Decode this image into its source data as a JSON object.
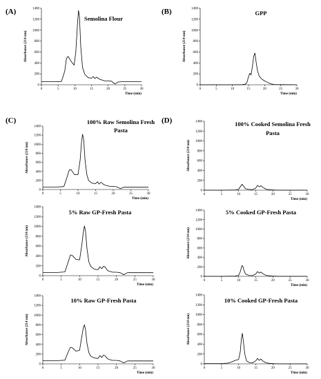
{
  "panel_labels": [
    "(A)",
    "(B)",
    "(C)",
    "(D)"
  ],
  "chart_data": [
    {
      "type": "line",
      "title": "Semolina Flour",
      "xlabel": "Time (min)",
      "ylabel": "Absorbance (214 nm)",
      "xlim": [
        0,
        30
      ],
      "ylim": [
        0,
        1400
      ],
      "xticks": [
        "0",
        "5",
        "10",
        "15",
        "20",
        "25",
        "30"
      ],
      "yticks": [
        "0",
        "200",
        "400",
        "600",
        "800",
        "1000",
        "1200",
        "1400"
      ],
      "x": [
        0,
        4,
        6,
        7,
        7.5,
        8,
        9,
        9.8,
        10.3,
        10.8,
        11.1,
        11.4,
        11.8,
        12.3,
        13,
        14,
        15,
        15.5,
        16,
        16.5,
        17,
        17.5,
        18,
        19,
        20,
        21,
        22,
        23,
        24,
        26,
        28,
        30
      ],
      "y": [
        55,
        55,
        60,
        250,
        480,
        520,
        420,
        360,
        600,
        1100,
        1360,
        1250,
        700,
        320,
        190,
        130,
        120,
        150,
        115,
        140,
        120,
        100,
        90,
        70,
        70,
        65,
        15,
        50,
        55,
        55,
        55,
        55
      ]
    },
    {
      "type": "line",
      "title": "GPP",
      "xlabel": "Time (min)",
      "ylabel": "Absorbance (214 nm)",
      "xlim": [
        0,
        30
      ],
      "ylim": [
        0,
        1400
      ],
      "xticks": [
        "0",
        "5",
        "10",
        "15",
        "20",
        "25",
        "30"
      ],
      "yticks": [
        "0",
        "200",
        "400",
        "600",
        "800",
        "1000",
        "1200",
        "1400"
      ],
      "x": [
        0,
        5,
        10,
        13,
        14,
        14.5,
        15,
        15.4,
        15.8,
        16.2,
        16.6,
        17,
        17.4,
        17.8,
        18.3,
        19,
        20,
        21,
        22,
        23,
        25,
        30
      ],
      "y": [
        0,
        0,
        0,
        2,
        10,
        40,
        150,
        210,
        180,
        330,
        520,
        580,
        400,
        250,
        160,
        110,
        70,
        40,
        15,
        5,
        2,
        0
      ]
    },
    {
      "type": "line",
      "title": "100% Raw Semolina Fresh Pasta",
      "xlabel": "Time (min)",
      "ylabel": "Absorbance (214 nm)",
      "xlim": [
        0,
        30
      ],
      "ylim": [
        0,
        1400
      ],
      "xticks": [
        "0",
        "5",
        "10",
        "15",
        "20",
        "25",
        "30"
      ],
      "yticks": [
        "0",
        "200",
        "400",
        "600",
        "800",
        "1000",
        "1200",
        "1400"
      ],
      "x": [
        0,
        4,
        6,
        7,
        7.5,
        8,
        9,
        10,
        10.6,
        11,
        11.3,
        11.6,
        12,
        12.5,
        13,
        14,
        15,
        15.5,
        16,
        16.5,
        17,
        17.5,
        18,
        19,
        20,
        21,
        22,
        23,
        25,
        28,
        30
      ],
      "y": [
        55,
        55,
        65,
        300,
        430,
        440,
        330,
        330,
        650,
        1050,
        1220,
        1100,
        650,
        330,
        200,
        140,
        130,
        170,
        120,
        160,
        130,
        100,
        90,
        70,
        70,
        60,
        20,
        50,
        50,
        50,
        50
      ]
    },
    {
      "type": "line",
      "title": "5% Raw GP-Fresh Pasta",
      "xlabel": "Time (min)",
      "ylabel": "Absorbance (214 nm)",
      "xlim": [
        0,
        30
      ],
      "ylim": [
        0,
        1400
      ],
      "xticks": [
        "0",
        "5",
        "10",
        "15",
        "20",
        "25",
        "30"
      ],
      "yticks": [
        "0",
        "200",
        "400",
        "600",
        "800",
        "1000",
        "1200",
        "1400"
      ],
      "x": [
        0,
        4,
        6,
        7,
        7.5,
        8,
        9,
        10,
        10.6,
        11,
        11.3,
        11.6,
        12,
        12.5,
        13,
        14,
        15,
        15.5,
        16,
        16.5,
        17,
        17.5,
        18,
        19,
        20,
        21,
        22,
        23,
        25,
        28,
        30
      ],
      "y": [
        65,
        65,
        75,
        300,
        420,
        410,
        330,
        320,
        620,
        880,
        1010,
        900,
        550,
        280,
        190,
        130,
        120,
        180,
        140,
        190,
        170,
        110,
        90,
        70,
        70,
        60,
        20,
        60,
        60,
        60,
        60
      ]
    },
    {
      "type": "line",
      "title": "10% Raw GP-Fresh Pasta",
      "xlabel": "Time (min)",
      "ylabel": "Absorbance (214 nm)",
      "xlim": [
        0,
        30
      ],
      "ylim": [
        0,
        1400
      ],
      "xticks": [
        "0",
        "5",
        "10",
        "15",
        "20",
        "25",
        "30"
      ],
      "yticks": [
        "0",
        "200",
        "400",
        "600",
        "800",
        "1000",
        "1200",
        "1400"
      ],
      "x": [
        0,
        4,
        6,
        7,
        7.5,
        8,
        9,
        10,
        10.6,
        11,
        11.3,
        11.6,
        12,
        12.5,
        13,
        14,
        15,
        15.5,
        16,
        16.5,
        17,
        17.5,
        18,
        19,
        20,
        21,
        22,
        23,
        25,
        28,
        30
      ],
      "y": [
        65,
        65,
        75,
        260,
        340,
        330,
        260,
        280,
        560,
        740,
        800,
        700,
        420,
        230,
        160,
        120,
        110,
        170,
        130,
        180,
        160,
        110,
        90,
        70,
        70,
        60,
        20,
        60,
        60,
        60,
        60
      ]
    },
    {
      "type": "line",
      "title": "100% Cooked Semolina Fresh Pasta",
      "xlabel": "Time (min)",
      "ylabel": "Absorbance (214 nm)",
      "xlim": [
        0,
        30
      ],
      "ylim": [
        0,
        1400
      ],
      "xticks": [
        "0",
        "5",
        "10",
        "15",
        "20",
        "25",
        "30"
      ],
      "yticks": [
        "0",
        "200",
        "400",
        "600",
        "800",
        "1000",
        "1200",
        "1400"
      ],
      "x": [
        0,
        5,
        9,
        10,
        10.5,
        11,
        11.5,
        12,
        13,
        14,
        15,
        15.5,
        16,
        16.5,
        17,
        17.5,
        18,
        19,
        20,
        22,
        25,
        30
      ],
      "y": [
        0,
        0,
        5,
        20,
        70,
        120,
        80,
        30,
        15,
        10,
        40,
        100,
        70,
        90,
        60,
        40,
        20,
        10,
        5,
        0,
        0,
        0
      ]
    },
    {
      "type": "line",
      "title": "5% Cooked GP-Fresh Pasta",
      "xlabel": "Time (min)",
      "ylabel": "Absorbance (214 nm)",
      "xlim": [
        0,
        30
      ],
      "ylim": [
        0,
        1400
      ],
      "xticks": [
        "0",
        "5",
        "10",
        "15",
        "20",
        "25",
        "30"
      ],
      "yticks": [
        "0",
        "200",
        "400",
        "600",
        "800",
        "1000",
        "1200",
        "1400"
      ],
      "x": [
        0,
        5,
        9,
        10,
        10.5,
        11,
        11.3,
        11.6,
        12,
        13,
        14,
        15,
        15.5,
        16,
        16.5,
        17,
        17.5,
        18,
        19,
        20,
        22,
        25,
        30
      ],
      "y": [
        0,
        0,
        5,
        20,
        100,
        230,
        200,
        120,
        50,
        20,
        15,
        50,
        100,
        70,
        90,
        60,
        40,
        20,
        10,
        5,
        0,
        0,
        0
      ]
    },
    {
      "type": "line",
      "title": "10% Cooked GP-Fresh Pasta",
      "xlabel": "Time (min)",
      "ylabel": "Absorbance (214 nm)",
      "xlim": [
        0,
        30
      ],
      "ylim": [
        0,
        1400
      ],
      "xticks": [
        "0",
        "5",
        "10",
        "15",
        "20",
        "25",
        "30"
      ],
      "yticks": [
        "0",
        "200",
        "400",
        "600",
        "800",
        "1000",
        "1200",
        "1400"
      ],
      "x": [
        0,
        5,
        7,
        8,
        9,
        9.5,
        10,
        10.5,
        10.8,
        11.1,
        11.4,
        11.8,
        12.3,
        13,
        14,
        15,
        15.5,
        16,
        16.5,
        17,
        17.5,
        18,
        19,
        20,
        22,
        25,
        30
      ],
      "y": [
        5,
        5,
        15,
        40,
        70,
        80,
        90,
        250,
        500,
        620,
        450,
        200,
        60,
        30,
        20,
        60,
        110,
        70,
        100,
        60,
        40,
        20,
        10,
        5,
        0,
        0,
        0
      ]
    }
  ]
}
